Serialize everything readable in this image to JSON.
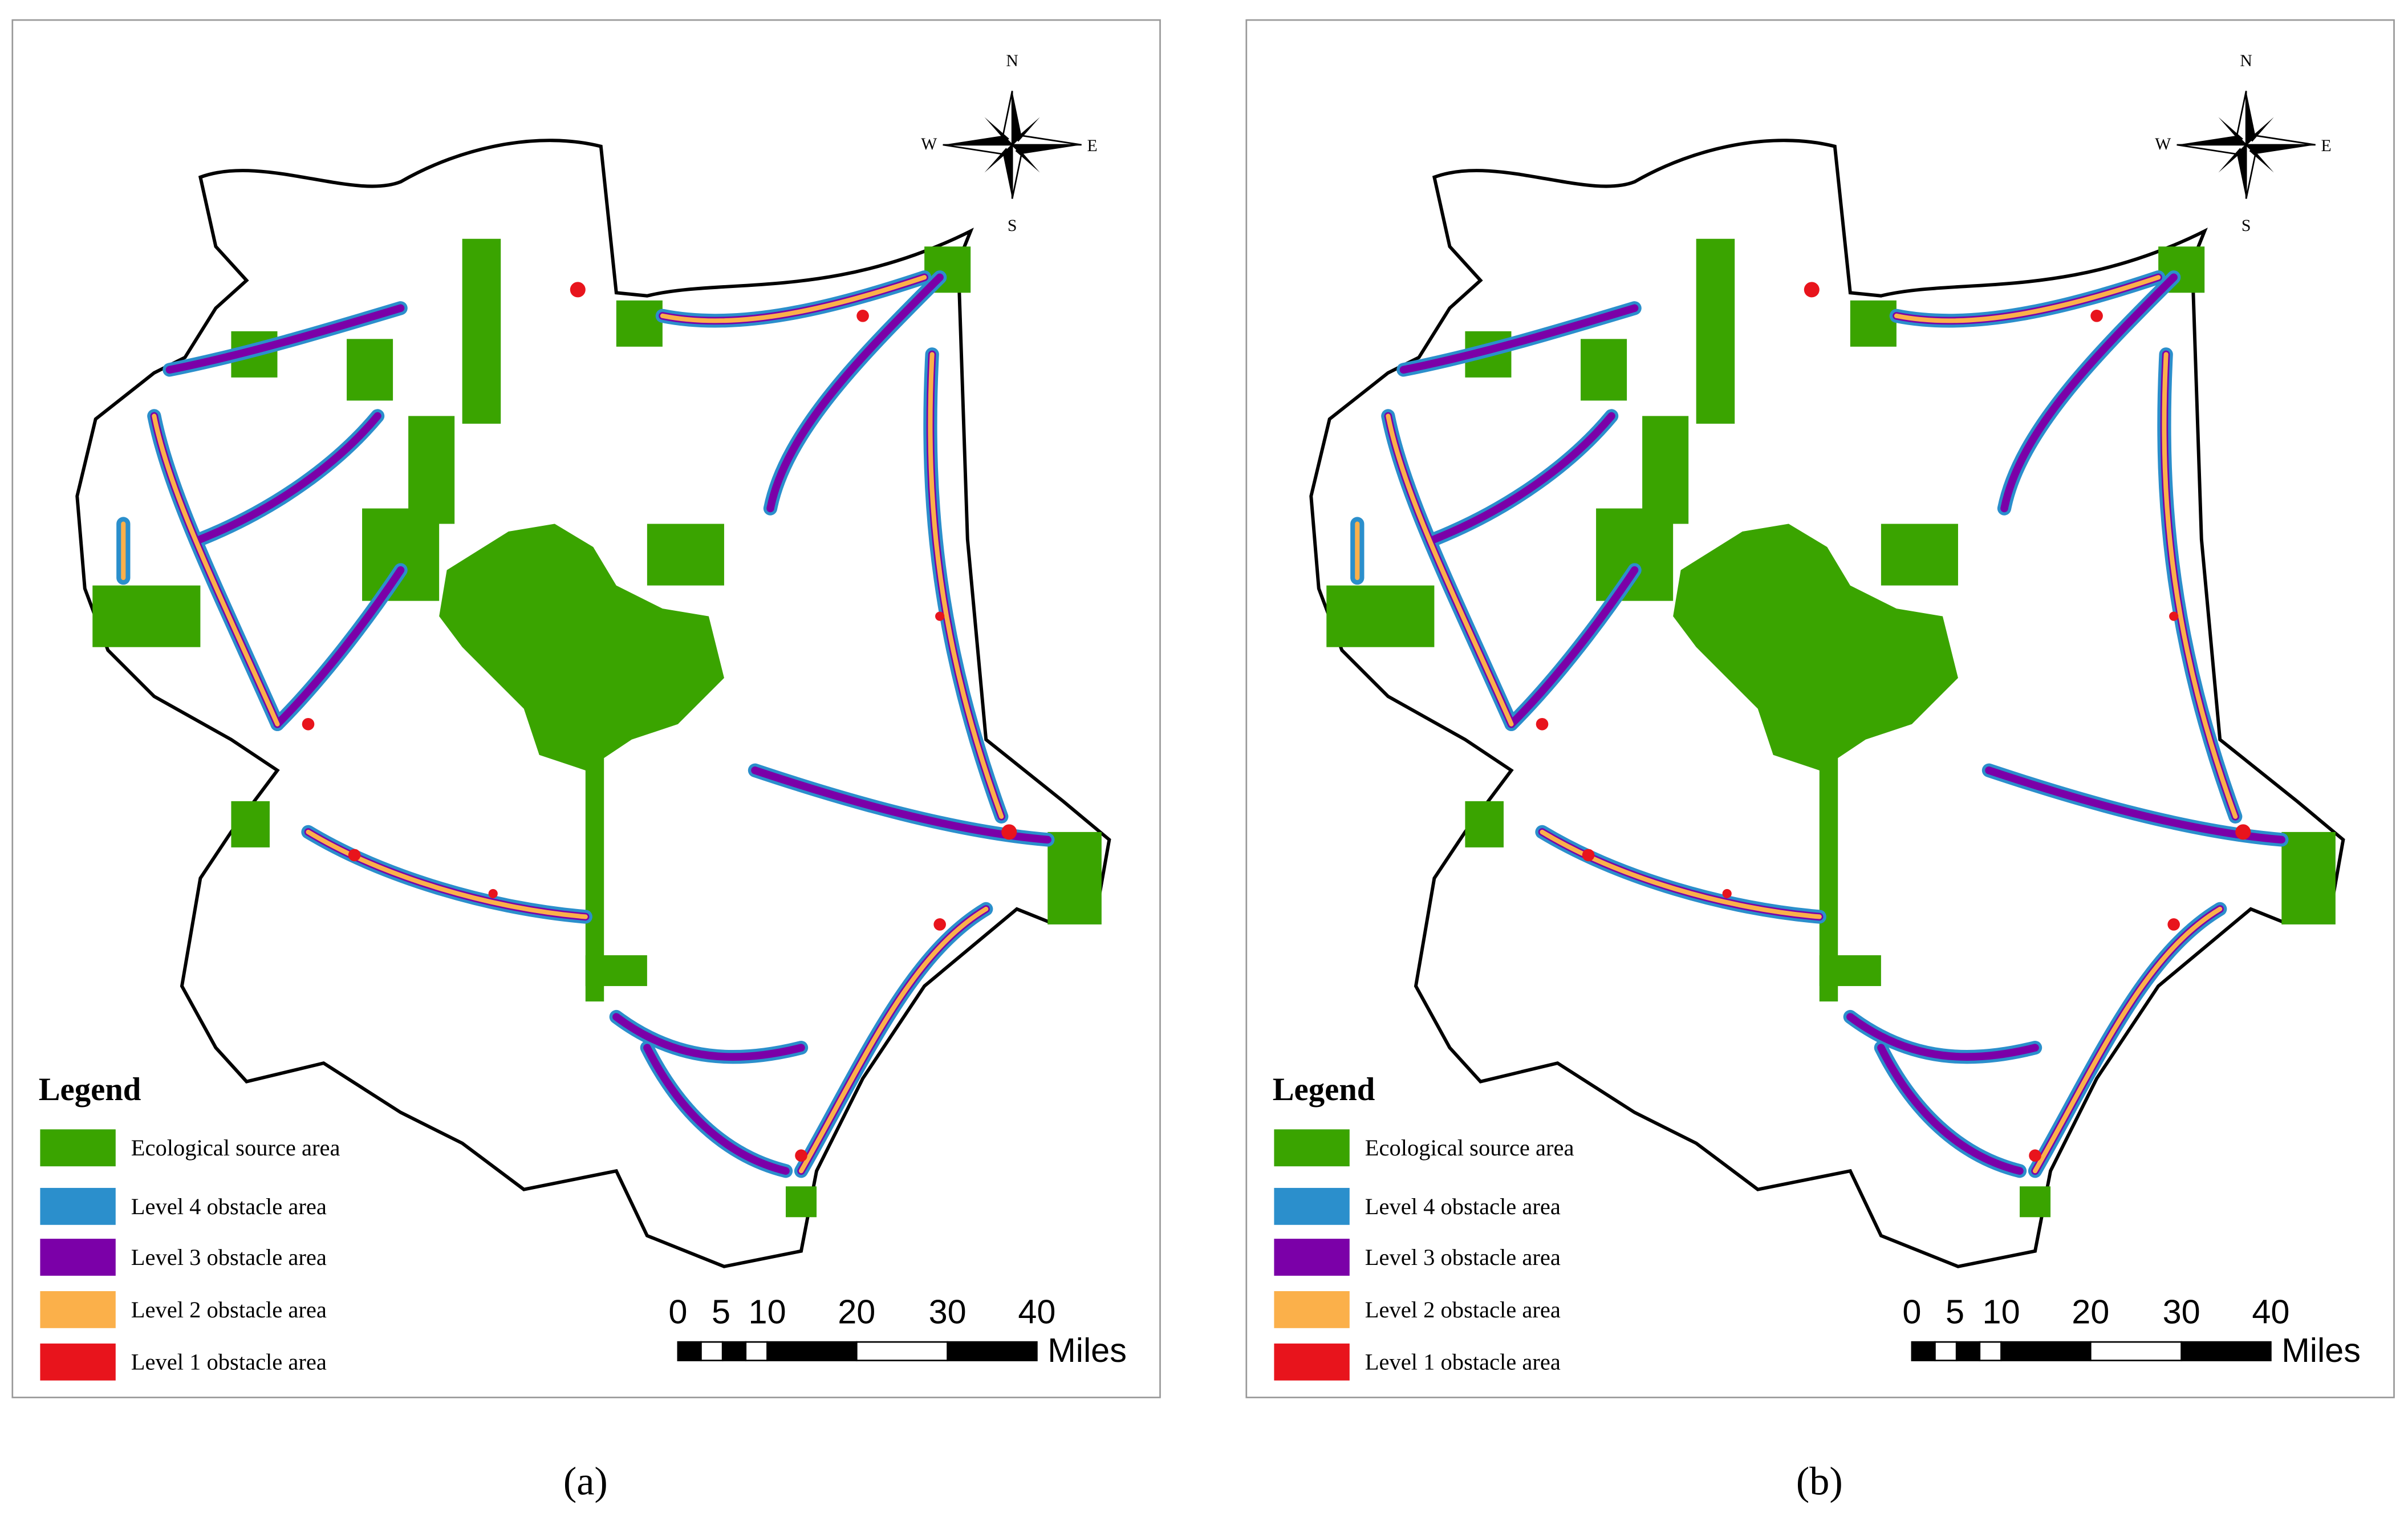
{
  "panels": [
    {
      "caption": "(a)",
      "compass": {
        "north": "N",
        "south": "S",
        "west": "W",
        "east": "E"
      },
      "legend": {
        "title": "Legend",
        "items": [
          {
            "label": "Ecological source area",
            "color": "#3aa400"
          },
          {
            "label": "Level 4 obstacle area",
            "color": "#2b8fcc"
          },
          {
            "label": "Level 3 obstacle area",
            "color": "#7b00a8"
          },
          {
            "label": "Level 2 obstacle area",
            "color": "#fbb04a"
          },
          {
            "label": "Level 1 obstacle area",
            "color": "#e8141c"
          }
        ]
      },
      "scale_bar": {
        "ticks": [
          "0",
          "5",
          "10",
          "20",
          "30",
          "40"
        ],
        "unit": "Miles"
      }
    },
    {
      "caption": "(b)",
      "compass": {
        "north": "N",
        "south": "S",
        "west": "W",
        "east": "E"
      },
      "legend": {
        "title": "Legend",
        "items": [
          {
            "label": "Ecological source area",
            "color": "#3aa400"
          },
          {
            "label": "Level 4 obstacle area",
            "color": "#2b8fcc"
          },
          {
            "label": "Level 3 obstacle area",
            "color": "#7b00a8"
          },
          {
            "label": "Level 2 obstacle area",
            "color": "#fbb04a"
          },
          {
            "label": "Level 1 obstacle area",
            "color": "#e8141c"
          }
        ]
      },
      "scale_bar": {
        "ticks": [
          "0",
          "5",
          "10",
          "20",
          "30",
          "40"
        ],
        "unit": "Miles"
      }
    }
  ]
}
